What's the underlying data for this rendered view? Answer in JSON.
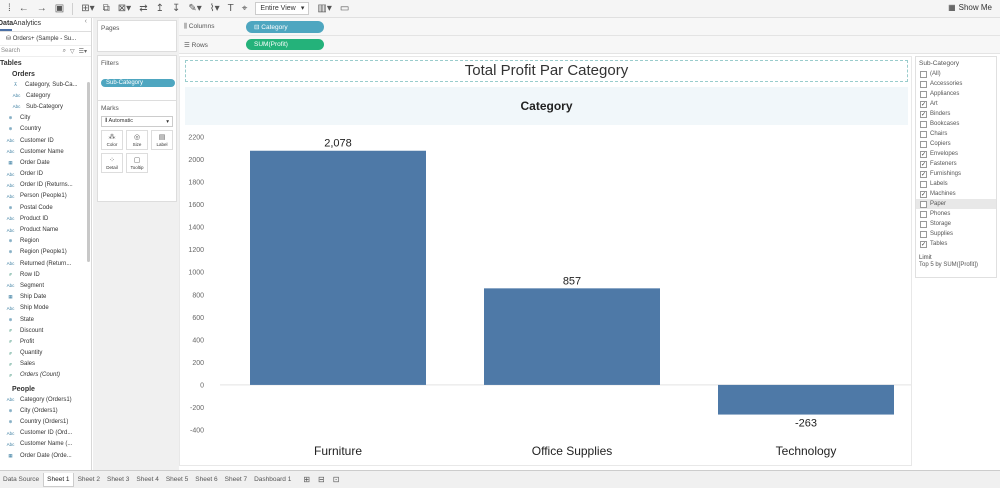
{
  "toolbar": {
    "view_mode": "Entire View",
    "show_me": "Show Me"
  },
  "data_pane": {
    "tabs": [
      "Data",
      "Analytics"
    ],
    "datasource": "Orders+ (Sample - Su...",
    "search_placeholder": "Search",
    "tables_label": "Tables",
    "orders_header": "Orders",
    "orders_fields": [
      {
        "icon": "hierarchy-icon",
        "type": "h",
        "name": "Category, Sub-Ca...",
        "cls": "indent"
      },
      {
        "icon": "abc",
        "type": "str",
        "name": "Category",
        "cls": "indent2"
      },
      {
        "icon": "abc",
        "type": "str",
        "name": "Sub-Category",
        "cls": "indent2"
      },
      {
        "icon": "globe",
        "type": "geo",
        "name": "City",
        "cls": ""
      },
      {
        "icon": "globe",
        "type": "geo",
        "name": "Country",
        "cls": ""
      },
      {
        "icon": "abc",
        "type": "str",
        "name": "Customer ID",
        "cls": ""
      },
      {
        "icon": "abc",
        "type": "str",
        "name": "Customer Name",
        "cls": ""
      },
      {
        "icon": "calendar",
        "type": "date",
        "name": "Order Date",
        "cls": ""
      },
      {
        "icon": "abc",
        "type": "str",
        "name": "Order ID",
        "cls": ""
      },
      {
        "icon": "abc",
        "type": "str",
        "name": "Order ID (Returns...",
        "cls": ""
      },
      {
        "icon": "abc",
        "type": "str",
        "name": "Person (People1)",
        "cls": ""
      },
      {
        "icon": "globe",
        "type": "geo",
        "name": "Postal Code",
        "cls": ""
      },
      {
        "icon": "abc",
        "type": "str",
        "name": "Product ID",
        "cls": ""
      },
      {
        "icon": "abc",
        "type": "str",
        "name": "Product Name",
        "cls": ""
      },
      {
        "icon": "globe",
        "type": "geo",
        "name": "Region",
        "cls": ""
      },
      {
        "icon": "globe",
        "type": "geo",
        "name": "Region (People1)",
        "cls": ""
      },
      {
        "icon": "abc",
        "type": "str",
        "name": "Returned (Return...",
        "cls": ""
      },
      {
        "icon": "hash",
        "type": "num",
        "name": "Row ID",
        "cls": ""
      },
      {
        "icon": "abc",
        "type": "str",
        "name": "Segment",
        "cls": ""
      },
      {
        "icon": "calendar",
        "type": "date",
        "name": "Ship Date",
        "cls": ""
      },
      {
        "icon": "abc",
        "type": "str",
        "name": "Ship Mode",
        "cls": ""
      },
      {
        "icon": "globe",
        "type": "geo",
        "name": "State",
        "cls": ""
      },
      {
        "icon": "hash",
        "type": "num",
        "name": "Discount",
        "cls": ""
      },
      {
        "icon": "hash",
        "type": "num",
        "name": "Profit",
        "cls": ""
      },
      {
        "icon": "hash",
        "type": "num",
        "name": "Quantity",
        "cls": ""
      },
      {
        "icon": "hash",
        "type": "num",
        "name": "Sales",
        "cls": ""
      },
      {
        "icon": "hash",
        "type": "num",
        "name": "Orders (Count)",
        "cls": "italic"
      }
    ],
    "people_header": "People",
    "people_fields": [
      {
        "icon": "abc",
        "type": "str",
        "name": "Category (Orders1)",
        "cls": ""
      },
      {
        "icon": "globe",
        "type": "geo",
        "name": "City (Orders1)",
        "cls": ""
      },
      {
        "icon": "globe",
        "type": "geo",
        "name": "Country (Orders1)",
        "cls": ""
      },
      {
        "icon": "abc",
        "type": "str",
        "name": "Customer ID (Ord...",
        "cls": ""
      },
      {
        "icon": "abc",
        "type": "str",
        "name": "Customer Name (...",
        "cls": ""
      },
      {
        "icon": "calendar",
        "type": "date",
        "name": "Order Date (Orde...",
        "cls": ""
      }
    ]
  },
  "cards": {
    "pages_label": "Pages",
    "filters_label": "Filters",
    "filter_pill": "Sub-Category",
    "marks_label": "Marks",
    "marks_type": "Automatic",
    "mark_buttons": [
      "Color",
      "Size",
      "Label",
      "Detail",
      "Tooltip"
    ]
  },
  "shelves": {
    "columns_label": "Columns",
    "columns_pill": "Category",
    "rows_label": "Rows",
    "rows_pill": "SUM(Profit)"
  },
  "sheet": {
    "title": "Total Profit Par Category",
    "header": "Category"
  },
  "chart_data": {
    "type": "bar",
    "categories": [
      "Furniture",
      "Office Supplies",
      "Technology"
    ],
    "values": [
      2078,
      857,
      -263
    ],
    "labels": [
      "2,078",
      "857",
      "-263"
    ],
    "ylim": [
      -400,
      2200
    ],
    "yticks": [
      -400,
      -200,
      0,
      200,
      400,
      600,
      800,
      1000,
      1200,
      1400,
      1600,
      1800,
      2000,
      2200
    ],
    "bar_color": "#4e79a7",
    "grid": false
  },
  "filter_panel": {
    "title": "Sub-Category",
    "options": [
      {
        "label": "(All)",
        "checked": false,
        "hl": false
      },
      {
        "label": "Accessories",
        "checked": false,
        "hl": false
      },
      {
        "label": "Appliances",
        "checked": false,
        "hl": false
      },
      {
        "label": "Art",
        "checked": true,
        "hl": false
      },
      {
        "label": "Binders",
        "checked": true,
        "hl": false
      },
      {
        "label": "Bookcases",
        "checked": false,
        "hl": false
      },
      {
        "label": "Chairs",
        "checked": false,
        "hl": false
      },
      {
        "label": "Copiers",
        "checked": false,
        "hl": false
      },
      {
        "label": "Envelopes",
        "checked": true,
        "hl": false
      },
      {
        "label": "Fasteners",
        "checked": true,
        "hl": false
      },
      {
        "label": "Furnishings",
        "checked": true,
        "hl": false
      },
      {
        "label": "Labels",
        "checked": false,
        "hl": false
      },
      {
        "label": "Machines",
        "checked": true,
        "hl": false
      },
      {
        "label": "Paper",
        "checked": false,
        "hl": true
      },
      {
        "label": "Phones",
        "checked": false,
        "hl": false
      },
      {
        "label": "Storage",
        "checked": false,
        "hl": false
      },
      {
        "label": "Supplies",
        "checked": false,
        "hl": false
      },
      {
        "label": "Tables",
        "checked": true,
        "hl": false
      }
    ],
    "limit_label": "Limit",
    "limit_text": "Top 5 by SUM([Profit])"
  },
  "bottom_tabs": {
    "datasource": "Data Source",
    "sheets": [
      "Sheet 1",
      "Sheet 2",
      "Sheet 3",
      "Sheet 4",
      "Sheet 5",
      "Sheet 6",
      "Sheet 7",
      "Dashboard 1"
    ],
    "active": "Sheet 1"
  }
}
